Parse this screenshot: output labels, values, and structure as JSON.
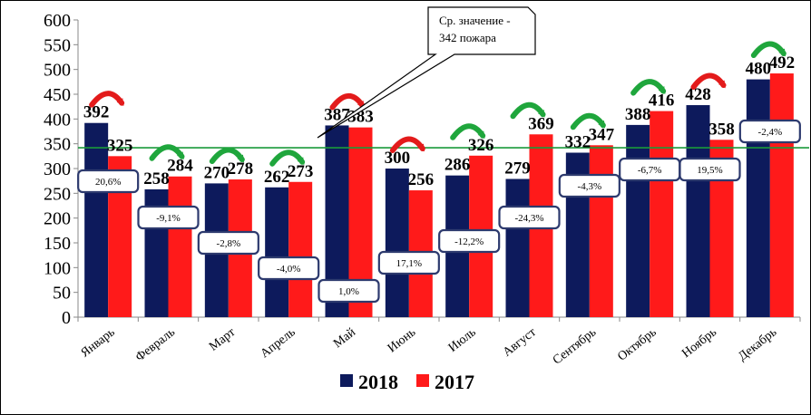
{
  "chart_data": {
    "type": "bar",
    "categories": [
      "Январь",
      "Февраль",
      "Март",
      "Апрель",
      "Май",
      "Июнь",
      "Июль",
      "Август",
      "Сентябрь",
      "Октябрь",
      "Ноябрь",
      "Декабрь"
    ],
    "series": [
      {
        "name": "2018",
        "color": "#0d1a5c",
        "values": [
          392,
          258,
          270,
          262,
          387,
          300,
          286,
          279,
          332,
          388,
          428,
          480
        ]
      },
      {
        "name": "2017",
        "color": "#ff1a1a",
        "values": [
          325,
          284,
          278,
          273,
          383,
          256,
          326,
          369,
          347,
          416,
          358,
          492
        ]
      }
    ],
    "value_labels": [
      [
        "392",
        "325"
      ],
      [
        "258",
        "284"
      ],
      [
        "270",
        "278"
      ],
      [
        "262",
        "273"
      ],
      [
        "387",
        "383"
      ],
      [
        "300",
        "256"
      ],
      [
        "286",
        "326"
      ],
      [
        "279",
        "369"
      ],
      [
        "332",
        "347"
      ],
      [
        "388",
        "416"
      ],
      [
        "428",
        "358"
      ],
      [
        "480",
        "492"
      ]
    ],
    "changes": [
      "20,6%",
      "-9,1%",
      "-2,8%",
      "-4,0%",
      "1,0%",
      "17,1%",
      "-12,2%",
      "-24,3%",
      "-4,3%",
      "-6,7%",
      "19,5%",
      "-2,4%"
    ],
    "change_label_y": [
      200,
      240,
      268,
      296,
      321,
      290,
      266,
      240,
      205,
      187,
      187,
      145
    ],
    "trend": [
      "up",
      "down",
      "down",
      "down",
      "up",
      "up",
      "down",
      "down",
      "down",
      "down",
      "up",
      "down"
    ],
    "y_ticks": [
      "0",
      "50",
      "100",
      "150",
      "200",
      "250",
      "300",
      "350",
      "400",
      "450",
      "500",
      "550",
      "600"
    ],
    "ylim": [
      0,
      600
    ],
    "average": {
      "value": 342,
      "label_line1": "Ср. значение -",
      "label_line2": "342 пожара",
      "color": "#1a9a3a"
    },
    "legend_placement": "bottom",
    "arrow_colors": {
      "up": "#e31b1b",
      "down": "#1fa63c"
    },
    "box_border_color": "#2d3a6e"
  }
}
